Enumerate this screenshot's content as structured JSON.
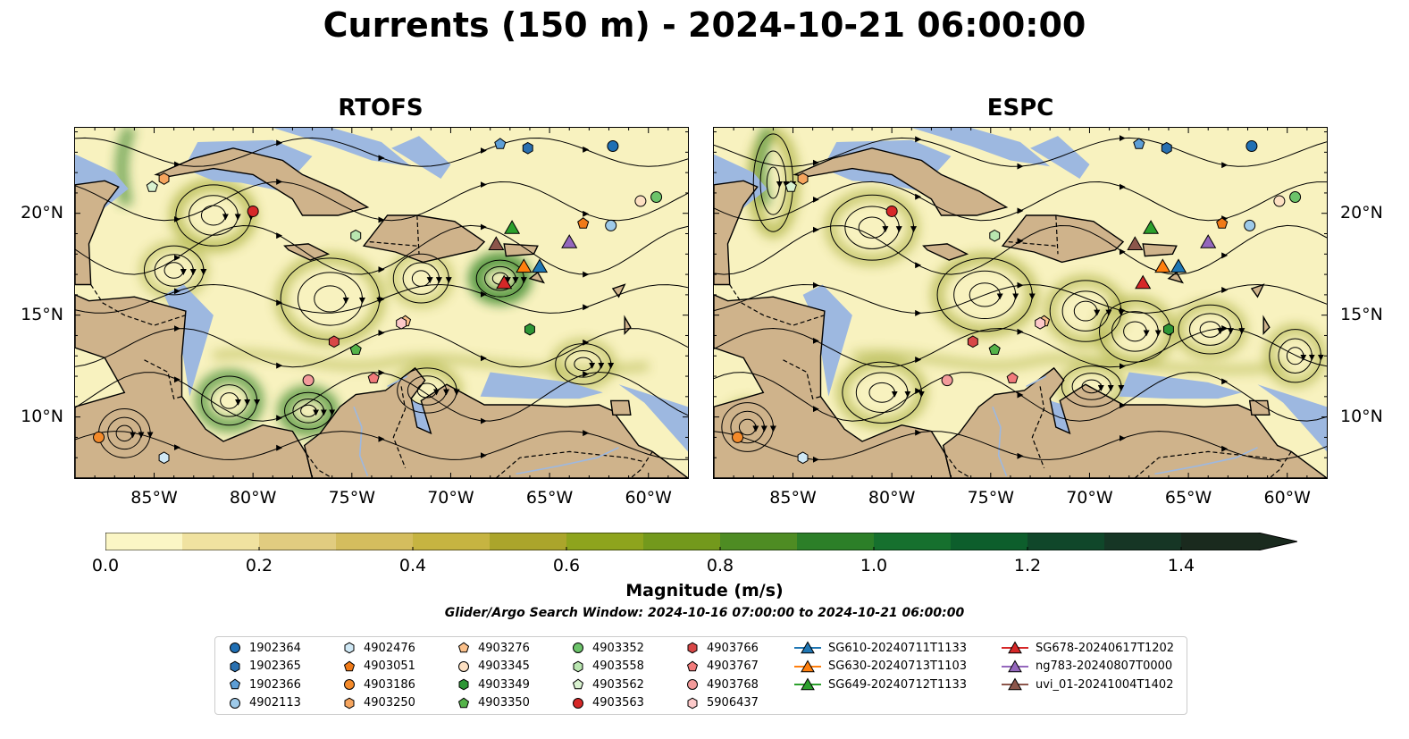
{
  "title": "Currents (150 m) - 2024-10-21 06:00:00",
  "panels": [
    {
      "title": "RTOFS"
    },
    {
      "title": "ESPC"
    }
  ],
  "map_extent": {
    "lon_min": -89,
    "lon_max": -58,
    "lat_min": 7,
    "lat_max": 24.2
  },
  "axes": {
    "x_ticks": [
      "85°W",
      "80°W",
      "75°W",
      "70°W",
      "65°W",
      "60°W"
    ],
    "x_tick_values": [
      -85,
      -80,
      -75,
      -70,
      -65,
      -60
    ],
    "y_ticks": [
      "20°N",
      "15°N",
      "10°N"
    ],
    "y_tick_values": [
      20,
      15,
      10
    ]
  },
  "colors": {
    "land": "#cfb38b",
    "water_shallow": "#9db8e0",
    "vel_low": "#f8f2bf",
    "vel_mid": "#a7ad3c",
    "vel_high": "#3d8a2f"
  },
  "colorbar": {
    "label": "Magnitude (m/s)",
    "ticks": [
      "0.0",
      "0.2",
      "0.4",
      "0.6",
      "0.8",
      "1.0",
      "1.2",
      "1.4"
    ],
    "tick_values": [
      0.0,
      0.2,
      0.4,
      0.6,
      0.8,
      1.0,
      1.2,
      1.4
    ],
    "range": [
      0,
      1.5
    ],
    "extend": "max",
    "colors": [
      "#fbf6c5",
      "#f0e2a0",
      "#e1cc80",
      "#d4bd5e",
      "#c6b441",
      "#aba52b",
      "#8ea41d",
      "#73991c",
      "#4e8c23",
      "#2c7f28",
      "#16702e",
      "#0d5e2c",
      "#10472a",
      "#163625",
      "#1a2a1e"
    ]
  },
  "subtitle": "Glider/Argo Search Window: 2024-10-16 07:00:00 to 2024-10-21 06:00:00",
  "legend": [
    {
      "label": "1902364",
      "marker": "circle",
      "color": "#1f6fb4",
      "lon": -61.8,
      "lat": 23.3
    },
    {
      "label": "1902365",
      "marker": "hexagon",
      "color": "#2a70b0",
      "lon": -66.1,
      "lat": 23.2
    },
    {
      "label": "1902366",
      "marker": "pentagon",
      "color": "#5d9ed6",
      "lon": -67.5,
      "lat": 23.4
    },
    {
      "label": "4902113",
      "marker": "circle",
      "color": "#9ecae9",
      "lon": -61.9,
      "lat": 19.4
    },
    {
      "label": "4902476",
      "marker": "hexagon",
      "color": "#cfe8f5",
      "lon": -84.5,
      "lat": 8.0
    },
    {
      "label": "4903051",
      "marker": "pentagon",
      "color": "#f07a18",
      "lon": -63.3,
      "lat": 19.5
    },
    {
      "label": "4903186",
      "marker": "circle",
      "color": "#f48a2a",
      "lon": -87.8,
      "lat": 9.0
    },
    {
      "label": "4903250",
      "marker": "hexagon",
      "color": "#f6a55e",
      "lon": -84.5,
      "lat": 21.7
    },
    {
      "label": "4903276",
      "marker": "pentagon",
      "color": "#fbc08a",
      "lon": -72.3,
      "lat": 14.7
    },
    {
      "label": "4903345",
      "marker": "circle",
      "color": "#fde0c2",
      "lon": -60.4,
      "lat": 20.6
    },
    {
      "label": "4903349",
      "marker": "hexagon",
      "color": "#2e9636",
      "lon": -66.0,
      "lat": 14.3
    },
    {
      "label": "4903350",
      "marker": "pentagon",
      "color": "#54b349",
      "lon": -74.8,
      "lat": 13.3
    },
    {
      "label": "4903352",
      "marker": "circle",
      "color": "#6cc36a",
      "lon": -59.6,
      "lat": 20.8
    },
    {
      "label": "4903558",
      "marker": "hexagon",
      "color": "#b9e6b0",
      "lon": -74.8,
      "lat": 18.9
    },
    {
      "label": "4903562",
      "marker": "pentagon",
      "color": "#d9f2d0",
      "lon": -85.1,
      "lat": 21.3
    },
    {
      "label": "4903563",
      "marker": "circle",
      "color": "#d62828",
      "lon": -80.0,
      "lat": 20.1
    },
    {
      "label": "4903766",
      "marker": "hexagon",
      "color": "#d84747",
      "lon": -75.9,
      "lat": 13.7
    },
    {
      "label": "4903767",
      "marker": "pentagon",
      "color": "#f27b7b",
      "lon": -73.9,
      "lat": 11.9
    },
    {
      "label": "4903768",
      "marker": "circle",
      "color": "#f39b9b",
      "lon": -77.2,
      "lat": 11.8
    },
    {
      "label": "5906437",
      "marker": "hexagon",
      "color": "#fcc9c9",
      "lon": -72.5,
      "lat": 14.6
    },
    {
      "label": "SG610-20240711T1133",
      "marker": "triangle",
      "color": "#1f77b4",
      "lon": -65.5,
      "lat": 17.4
    },
    {
      "label": "SG630-20240713T1103",
      "marker": "triangle",
      "color": "#ff7f0e",
      "lon": -66.3,
      "lat": 17.4
    },
    {
      "label": "SG649-20240712T1133",
      "marker": "triangle",
      "color": "#2ca02c",
      "lon": -66.9,
      "lat": 19.3
    },
    {
      "label": "SG678-20240617T1202",
      "marker": "triangle",
      "color": "#d62728",
      "lon": -67.3,
      "lat": 16.6
    },
    {
      "label": "ng783-20240807T0000",
      "marker": "triangle",
      "color": "#9467bd",
      "lon": -64.0,
      "lat": 18.6
    },
    {
      "label": "uvi_01-20241004T1402",
      "marker": "triangle",
      "color": "#8c564b",
      "lon": -67.7,
      "lat": 18.5
    }
  ]
}
